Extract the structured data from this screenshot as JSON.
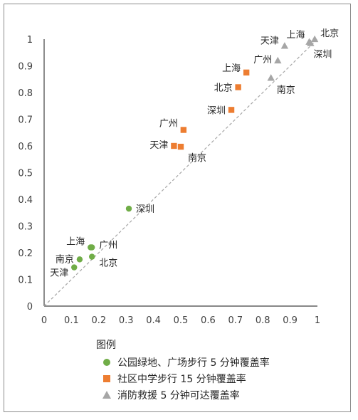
{
  "chart_data": {
    "type": "scatter",
    "title": "",
    "xlabel": "",
    "ylabel": "",
    "xlim": [
      0,
      1
    ],
    "ylim": [
      0,
      1
    ],
    "x_ticks": [
      "0",
      "0.1",
      "0.2",
      "0.3",
      "0.4",
      "0.5",
      "0.6",
      "0.7",
      "0.8",
      "0.9",
      "1"
    ],
    "y_ticks": [
      "0",
      "0.1",
      "0.2",
      "0.3",
      "0.4",
      "0.5",
      "0.6",
      "0.7",
      "0.8",
      "0.9",
      "1"
    ],
    "grid": false,
    "reference_line": {
      "style": "dashed",
      "from": [
        0,
        0
      ],
      "to": [
        1,
        1
      ],
      "color": "#a6a6a6"
    },
    "legend_title": "图例",
    "legend_position": "bottom",
    "series": [
      {
        "name": "公园绿地、广场步行 5 分钟覆盖率",
        "marker": "circle",
        "color": "#70ad47",
        "points": [
          {
            "label": "深圳",
            "x": 0.31,
            "y": 0.365
          },
          {
            "label": "上海",
            "x": 0.17,
            "y": 0.22
          },
          {
            "label": "广州",
            "x": 0.175,
            "y": 0.22
          },
          {
            "label": "南京",
            "x": 0.13,
            "y": 0.175
          },
          {
            "label": "北京",
            "x": 0.175,
            "y": 0.185
          },
          {
            "label": "天津",
            "x": 0.11,
            "y": 0.145
          }
        ]
      },
      {
        "name": "社区中学步行 15 分钟覆盖率",
        "marker": "square",
        "color": "#ed7d31",
        "points": [
          {
            "label": "上海",
            "x": 0.74,
            "y": 0.875
          },
          {
            "label": "北京",
            "x": 0.71,
            "y": 0.82
          },
          {
            "label": "深圳",
            "x": 0.685,
            "y": 0.735
          },
          {
            "label": "广州",
            "x": 0.51,
            "y": 0.66
          },
          {
            "label": "天津",
            "x": 0.475,
            "y": 0.6
          },
          {
            "label": "南京",
            "x": 0.5,
            "y": 0.597
          }
        ]
      },
      {
        "name": "消防救援 5 分钟可达覆盖率",
        "marker": "triangle",
        "color": "#a6a6a6",
        "points": [
          {
            "label": "北京",
            "x": 0.99,
            "y": 1.0
          },
          {
            "label": "上海",
            "x": 0.97,
            "y": 0.99
          },
          {
            "label": "天津",
            "x": 0.88,
            "y": 0.975
          },
          {
            "label": "深圳",
            "x": 0.975,
            "y": 0.985
          },
          {
            "label": "广州",
            "x": 0.855,
            "y": 0.92
          },
          {
            "label": "南京",
            "x": 0.83,
            "y": 0.855
          }
        ]
      }
    ]
  }
}
